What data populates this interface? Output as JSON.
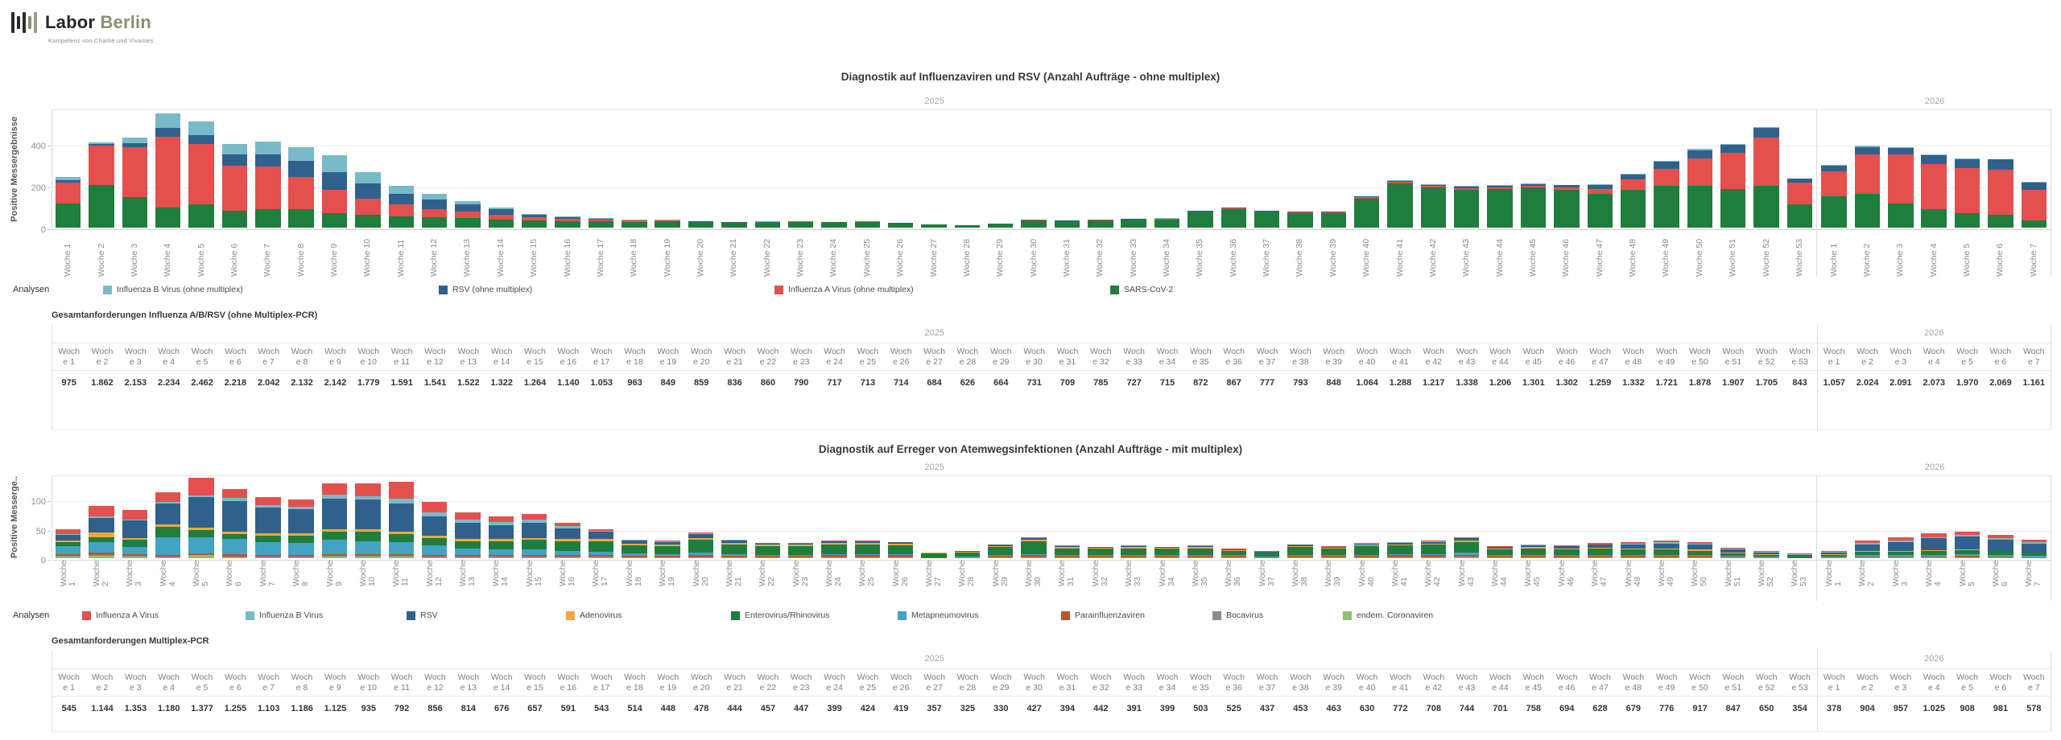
{
  "logo": {
    "brand_bold": "Labor",
    "brand_light": "Berlin",
    "tagline": "Kompetenz von Charité und Vivantes"
  },
  "years": [
    "2025",
    "2026"
  ],
  "weeks_2025": [
    "Woche 1",
    "Woche 2",
    "Woche 3",
    "Woche 4",
    "Woche 5",
    "Woche 6",
    "Woche 7",
    "Woche 8",
    "Woche 9",
    "Woche 10",
    "Woche 11",
    "Woche 12",
    "Woche 13",
    "Woche 14",
    "Woche 15",
    "Woche 16",
    "Woche 17",
    "Woche 18",
    "Woche 19",
    "Woche 20",
    "Woche 21",
    "Woche 22",
    "Woche 23",
    "Woche 24",
    "Woche 25",
    "Woche 26",
    "Woche 27",
    "Woche 28",
    "Woche 29",
    "Woche 30",
    "Woche 31",
    "Woche 32",
    "Woche 33",
    "Woche 34",
    "Woche 35",
    "Woche 36",
    "Woche 37",
    "Woche 38",
    "Woche 39",
    "Woche 40",
    "Woche 41",
    "Woche 42",
    "Woche 43",
    "Woche 44",
    "Woche 45",
    "Woche 46",
    "Woche 47",
    "Woche 48",
    "Woche 49",
    "Woche 50",
    "Woche 51",
    "Woche 52",
    "Woche 53"
  ],
  "weeks_2026": [
    "Woche 1",
    "Woche 2",
    "Woche 3",
    "Woche 4",
    "Woche 5",
    "Woche 6",
    "Woche 7"
  ],
  "colors": {
    "influenza_a": "#e4504e",
    "influenza_b": "#79bac9",
    "rsv": "#30618c",
    "sars_cov_2": "#1f7d3e",
    "adenovirus": "#f2a63c",
    "enterovirus_rhinovirus": "#1f7d3e",
    "metapneumovirus": "#44a3c4",
    "parainfluenzaviren": "#b5582c",
    "bocavirus": "#8c8c8c",
    "endem_coronaviren": "#8fbf6f"
  },
  "chart_data": [
    {
      "type": "bar",
      "stacked": true,
      "title": "Diagnostik auf Influenzaviren und RSV (Anzahl Aufträge - ohne multiplex)",
      "ylabel": "Positive Messergebnisse",
      "xlabel": "",
      "yticks": [
        0,
        200,
        400
      ],
      "ylim": [
        0,
        560
      ],
      "grid": true,
      "pane_years": [
        "2025",
        "2026"
      ],
      "pane_split": 53,
      "legend_title": "Analysen",
      "legend_position": "bottom",
      "legend": [
        {
          "label": "Influenza B Virus (ohne multiplex)",
          "color": "#79bac9"
        },
        {
          "label": "RSV (ohne multiplex)",
          "color": "#30618c"
        },
        {
          "label": "Influenza A Virus (ohne multiplex)",
          "color": "#e4504e"
        },
        {
          "label": "SARS-CoV-2",
          "color": "#1f7d3e"
        }
      ],
      "series": [
        {
          "name": "SARS-CoV-2",
          "color": "#1f7d3e",
          "values": [
            115,
            205,
            145,
            95,
            110,
            80,
            90,
            90,
            70,
            60,
            55,
            50,
            45,
            40,
            35,
            32,
            30,
            28,
            30,
            25,
            22,
            25,
            27,
            25,
            28,
            20,
            15,
            10,
            18,
            35,
            30,
            35,
            38,
            40,
            75,
            90,
            75,
            70,
            70,
            140,
            210,
            190,
            180,
            185,
            190,
            180,
            160,
            180,
            200,
            200,
            185,
            200,
            110,
            150,
            160,
            115,
            90,
            70,
            60,
            35
          ]
        },
        {
          "name": "Influenza A Virus (ohne multiplex)",
          "color": "#e4504e",
          "values": [
            100,
            185,
            240,
            340,
            290,
            215,
            200,
            150,
            110,
            80,
            55,
            40,
            30,
            22,
            15,
            10,
            8,
            5,
            4,
            3,
            3,
            2,
            2,
            2,
            2,
            1,
            1,
            1,
            1,
            2,
            2,
            2,
            2,
            3,
            3,
            3,
            3,
            3,
            4,
            5,
            8,
            8,
            8,
            8,
            10,
            12,
            25,
            50,
            80,
            130,
            170,
            230,
            105,
            120,
            190,
            235,
            215,
            215,
            215,
            145
          ]
        },
        {
          "name": "RSV (ohne multiplex)",
          "color": "#30618c",
          "values": [
            10,
            10,
            18,
            40,
            40,
            55,
            60,
            80,
            85,
            70,
            50,
            45,
            35,
            25,
            12,
            8,
            5,
            3,
            2,
            2,
            1,
            1,
            1,
            1,
            1,
            1,
            1,
            0,
            1,
            1,
            1,
            1,
            1,
            1,
            2,
            2,
            2,
            2,
            2,
            3,
            5,
            6,
            8,
            8,
            8,
            10,
            18,
            25,
            35,
            40,
            40,
            45,
            18,
            25,
            35,
            30,
            40,
            40,
            50,
            35
          ]
        },
        {
          "name": "Influenza B Virus (ohne multiplex)",
          "color": "#79bac9",
          "values": [
            15,
            8,
            28,
            70,
            65,
            50,
            60,
            65,
            80,
            55,
            40,
            25,
            15,
            10,
            5,
            3,
            2,
            1,
            1,
            1,
            1,
            1,
            1,
            0,
            0,
            0,
            0,
            0,
            0,
            0,
            1,
            1,
            1,
            1,
            1,
            1,
            1,
            1,
            1,
            2,
            2,
            2,
            2,
            2,
            2,
            2,
            3,
            4,
            5,
            6,
            6,
            6,
            3,
            4,
            5,
            5,
            5,
            5,
            3,
            2
          ]
        }
      ]
    },
    {
      "type": "bar",
      "stacked": true,
      "title": "Diagnostik auf Erreger von Atemwegsinfektionen (Anzahl Aufträge - mit multiplex)",
      "ylabel": "Positive Messerge..",
      "xlabel": "",
      "yticks": [
        0,
        50,
        100
      ],
      "ylim": [
        0,
        140
      ],
      "grid": true,
      "pane_years": [
        "2025",
        "2026"
      ],
      "pane_split": 53,
      "legend_title": "Analysen",
      "legend_position": "bottom",
      "legend": [
        {
          "label": "Influenza A Virus",
          "color": "#e4504e"
        },
        {
          "label": "Influenza B Virus",
          "color": "#79bac9"
        },
        {
          "label": "RSV",
          "color": "#30618c"
        },
        {
          "label": "Adenovirus",
          "color": "#f2a63c"
        },
        {
          "label": "Enterovirus/Rhinovirus",
          "color": "#1f7d3e"
        },
        {
          "label": "Metapneumovirus",
          "color": "#44a3c4"
        },
        {
          "label": "Parainfluenzaviren",
          "color": "#b5582c"
        },
        {
          "label": "Bocavirus",
          "color": "#8c8c8c"
        },
        {
          "label": "endem. Coronaviren",
          "color": "#8fbf6f"
        }
      ],
      "series": [
        {
          "name": "endem. Coronaviren",
          "color": "#8fbf6f",
          "values": [
            3,
            4,
            3,
            2,
            5,
            2,
            2,
            2,
            3,
            3,
            3,
            2,
            2,
            2,
            2,
            2,
            2,
            1,
            1,
            1,
            1,
            1,
            1,
            1,
            1,
            1,
            0,
            0,
            1,
            1,
            1,
            1,
            1,
            1,
            1,
            1,
            0,
            1,
            1,
            1,
            1,
            1,
            1,
            1,
            1,
            1,
            1,
            1,
            1,
            1,
            1,
            0,
            0,
            0,
            1,
            1,
            1,
            1,
            1,
            0
          ]
        },
        {
          "name": "Bocavirus",
          "color": "#8c8c8c",
          "values": [
            1,
            1,
            1,
            1,
            1,
            1,
            1,
            1,
            1,
            1,
            1,
            1,
            1,
            1,
            1,
            1,
            1,
            1,
            1,
            1,
            1,
            1,
            1,
            1,
            1,
            1,
            0,
            1,
            1,
            1,
            1,
            1,
            1,
            1,
            1,
            1,
            1,
            1,
            1,
            1,
            1,
            1,
            2,
            1,
            1,
            1,
            1,
            1,
            1,
            1,
            1,
            1,
            0,
            1,
            1,
            1,
            1,
            1,
            1,
            1
          ]
        },
        {
          "name": "Parainfluenzaviren",
          "color": "#b5582c",
          "values": [
            3,
            5,
            3,
            3,
            2,
            4,
            3,
            3,
            3,
            3,
            3,
            3,
            2,
            2,
            2,
            2,
            2,
            2,
            2,
            3,
            2,
            2,
            2,
            3,
            3,
            3,
            1,
            1,
            2,
            3,
            2,
            2,
            2,
            2,
            2,
            2,
            1,
            2,
            2,
            2,
            3,
            3,
            3,
            2,
            2,
            2,
            2,
            2,
            2,
            2,
            1,
            1,
            1,
            1,
            1,
            1,
            1,
            2,
            1,
            1
          ]
        },
        {
          "name": "Metapneumovirus",
          "color": "#44a3c4",
          "values": [
            14,
            18,
            12,
            30,
            28,
            26,
            22,
            20,
            24,
            22,
            20,
            16,
            12,
            10,
            10,
            8,
            6,
            4,
            3,
            4,
            3,
            2,
            2,
            2,
            2,
            2,
            1,
            1,
            1,
            2,
            1,
            1,
            1,
            1,
            1,
            1,
            1,
            2,
            2,
            2,
            2,
            2,
            3,
            2,
            2,
            2,
            2,
            2,
            2,
            2,
            1,
            1,
            1,
            1,
            2,
            2,
            3,
            3,
            3,
            2
          ]
        },
        {
          "name": "Enterovirus/Rhinovirus",
          "color": "#1f7d3e",
          "values": [
            6,
            8,
            12,
            18,
            12,
            8,
            10,
            12,
            14,
            16,
            14,
            12,
            12,
            14,
            16,
            16,
            18,
            14,
            14,
            22,
            16,
            14,
            14,
            16,
            16,
            15,
            6,
            7,
            14,
            22,
            12,
            11,
            12,
            11,
            12,
            8,
            6,
            13,
            10,
            14,
            15,
            16,
            18,
            9,
            11,
            9,
            10,
            9,
            9,
            7,
            5,
            3,
            2,
            3,
            6,
            6,
            7,
            7,
            6,
            5
          ]
        },
        {
          "name": "Adenovirus",
          "color": "#f2a63c",
          "values": [
            3,
            8,
            3,
            4,
            4,
            4,
            4,
            4,
            5,
            5,
            5,
            4,
            4,
            4,
            4,
            4,
            4,
            3,
            3,
            4,
            3,
            3,
            3,
            3,
            3,
            3,
            1,
            1,
            2,
            3,
            2,
            2,
            2,
            2,
            2,
            1,
            1,
            2,
            2,
            2,
            2,
            2,
            3,
            2,
            2,
            2,
            2,
            2,
            2,
            2,
            1,
            1,
            0,
            1,
            1,
            1,
            1,
            1,
            1,
            1
          ]
        },
        {
          "name": "RSV",
          "color": "#30618c",
          "values": [
            10,
            25,
            30,
            35,
            52,
            52,
            45,
            42,
            52,
            50,
            48,
            34,
            28,
            24,
            26,
            18,
            12,
            5,
            4,
            6,
            4,
            2,
            2,
            3,
            3,
            2,
            1,
            1,
            2,
            3,
            2,
            1,
            2,
            1,
            2,
            1,
            1,
            2,
            1,
            2,
            2,
            3,
            4,
            2,
            3,
            3,
            5,
            7,
            8,
            8,
            5,
            3,
            2,
            3,
            12,
            16,
            20,
            22,
            19,
            15
          ]
        },
        {
          "name": "Influenza B Virus",
          "color": "#79bac9",
          "values": [
            1,
            2,
            2,
            3,
            3,
            6,
            4,
            4,
            6,
            6,
            8,
            6,
            5,
            5,
            5,
            4,
            2,
            1,
            1,
            1,
            1,
            0,
            0,
            0,
            0,
            0,
            0,
            0,
            0,
            0,
            0,
            0,
            0,
            0,
            0,
            0,
            0,
            0,
            0,
            1,
            1,
            1,
            1,
            0,
            1,
            1,
            1,
            1,
            2,
            2,
            1,
            1,
            1,
            1,
            2,
            2,
            2,
            3,
            2,
            2
          ]
        },
        {
          "name": "Influenza A Virus",
          "color": "#e4504e",
          "values": [
            8,
            19,
            17,
            16,
            30,
            15,
            13,
            12,
            20,
            22,
            28,
            18,
            12,
            10,
            9,
            5,
            3,
            1,
            1,
            2,
            1,
            1,
            1,
            1,
            1,
            1,
            0,
            0,
            1,
            1,
            1,
            1,
            1,
            1,
            1,
            1,
            1,
            1,
            1,
            1,
            1,
            1,
            1,
            1,
            1,
            1,
            2,
            3,
            3,
            3,
            2,
            1,
            1,
            1,
            4,
            6,
            6,
            6,
            6,
            5
          ]
        }
      ]
    }
  ],
  "tables": [
    {
      "title": "Gesamtanforderungen Influenza A/B/RSV (ohne Multiplex-PCR)",
      "values_2025": [
        "975",
        "1.862",
        "2.153",
        "2.234",
        "2.462",
        "2.218",
        "2.042",
        "2.132",
        "2.142",
        "1.779",
        "1.591",
        "1.541",
        "1.522",
        "1.322",
        "1.264",
        "1.140",
        "1.053",
        "963",
        "849",
        "859",
        "836",
        "860",
        "790",
        "717",
        "713",
        "714",
        "684",
        "626",
        "664",
        "731",
        "709",
        "785",
        "727",
        "715",
        "872",
        "867",
        "777",
        "793",
        "848",
        "1.064",
        "1.288",
        "1.217",
        "1.338",
        "1.206",
        "1.301",
        "1.302",
        "1.259",
        "1.332",
        "1.721",
        "1.878",
        "1.907",
        "1.705",
        "843"
      ],
      "values_2026": [
        "1.057",
        "2.024",
        "2.091",
        "2.073",
        "1.970",
        "2.069",
        "1.161"
      ]
    },
    {
      "title": "Gesamtanforderungen Multiplex-PCR",
      "values_2025": [
        "545",
        "1.144",
        "1.353",
        "1.180",
        "1.377",
        "1.255",
        "1.103",
        "1.186",
        "1.125",
        "935",
        "792",
        "856",
        "814",
        "676",
        "657",
        "591",
        "543",
        "514",
        "448",
        "478",
        "444",
        "457",
        "447",
        "399",
        "424",
        "419",
        "357",
        "325",
        "330",
        "427",
        "394",
        "442",
        "391",
        "399",
        "503",
        "525",
        "437",
        "453",
        "463",
        "630",
        "772",
        "708",
        "744",
        "701",
        "758",
        "694",
        "628",
        "679",
        "776",
        "917",
        "847",
        "650",
        "354"
      ],
      "values_2026": [
        "378",
        "904",
        "957",
        "1.025",
        "908",
        "981",
        "578"
      ]
    }
  ]
}
